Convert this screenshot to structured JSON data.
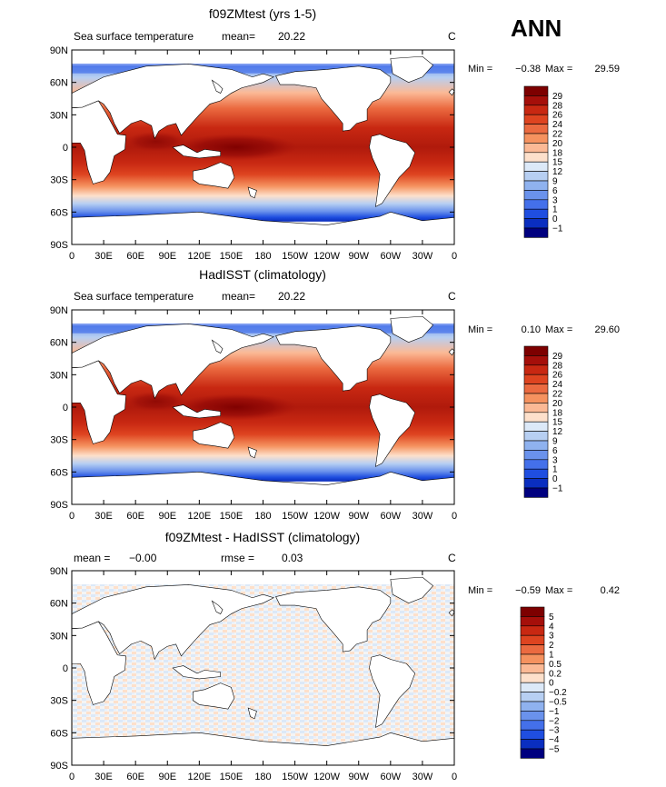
{
  "season_label": "ANN",
  "colors": {
    "contour_29": "#7d0000",
    "contour_neg": "#00007f"
  },
  "chart_data": [
    {
      "type": "heatmap",
      "title": "f09ZMtest (yrs 1-5)",
      "left_label": "Sea surface temperature",
      "mean_label": "mean=",
      "mean_value": "20.22",
      "units": "C",
      "min_label": "Min =",
      "min_value": "−0.38",
      "max_label": "Max =",
      "max_value": "29.59",
      "xticks": [
        "0",
        "30E",
        "60E",
        "90E",
        "120E",
        "150E",
        "180",
        "150W",
        "120W",
        "90W",
        "60W",
        "30W",
        "0"
      ],
      "yticks": [
        "90N",
        "60N",
        "30N",
        "0",
        "30S",
        "60S",
        "90S"
      ],
      "xlim": [
        0,
        360
      ],
      "ylim": [
        -90,
        90
      ],
      "levels": [
        "29",
        "28",
        "26",
        "24",
        "22",
        "20",
        "18",
        "15",
        "12",
        "9",
        "6",
        "3",
        "1",
        "0",
        "−1"
      ],
      "colors": [
        "#7d0000",
        "#a50f0a",
        "#c82812",
        "#de4420",
        "#eb6a40",
        "#f5925f",
        "#fbb995",
        "#fde0cb",
        "#dce9f8",
        "#b7cff2",
        "#8fb2ef",
        "#6a92ec",
        "#4470ea",
        "#1f4ee0",
        "#0a2ec0",
        "#00007f"
      ]
    },
    {
      "type": "heatmap",
      "title": "HadISST (climatology)",
      "left_label": "Sea surface temperature",
      "mean_label": "mean=",
      "mean_value": "20.22",
      "units": "C",
      "min_label": "Min =",
      "min_value": "0.10",
      "max_label": "Max =",
      "max_value": "29.60",
      "xticks": [
        "0",
        "30E",
        "60E",
        "90E",
        "120E",
        "150E",
        "180",
        "150W",
        "120W",
        "90W",
        "60W",
        "30W",
        "0"
      ],
      "yticks": [
        "90N",
        "60N",
        "30N",
        "0",
        "30S",
        "60S",
        "90S"
      ],
      "xlim": [
        0,
        360
      ],
      "ylim": [
        -90,
        90
      ],
      "levels": [
        "29",
        "28",
        "26",
        "24",
        "22",
        "20",
        "18",
        "15",
        "12",
        "9",
        "6",
        "3",
        "1",
        "0",
        "−1"
      ],
      "colors": [
        "#7d0000",
        "#a50f0a",
        "#c82812",
        "#de4420",
        "#eb6a40",
        "#f5925f",
        "#fbb995",
        "#fde0cb",
        "#dce9f8",
        "#b7cff2",
        "#8fb2ef",
        "#6a92ec",
        "#4470ea",
        "#1f4ee0",
        "#0a2ec0",
        "#00007f"
      ]
    },
    {
      "type": "heatmap",
      "title": "f09ZMtest - HadISST (climatology)",
      "left_label": "mean =",
      "mean_value": "−0.00",
      "rmse_label": "rmse =",
      "rmse_value": "0.03",
      "units": "C",
      "min_label": "Min =",
      "min_value": "−0.59",
      "max_label": "Max =",
      "max_value": "0.42",
      "xticks": [
        "0",
        "30E",
        "60E",
        "90E",
        "120E",
        "150E",
        "180",
        "150W",
        "120W",
        "90W",
        "60W",
        "30W",
        "0"
      ],
      "yticks": [
        "90N",
        "60N",
        "30N",
        "0",
        "30S",
        "60S",
        "90S"
      ],
      "xlim": [
        0,
        360
      ],
      "ylim": [
        -90,
        90
      ],
      "levels": [
        "5",
        "4",
        "3",
        "2",
        "1",
        "0.5",
        "0.2",
        "0",
        "−0.2",
        "−0.5",
        "−1",
        "−2",
        "−3",
        "−4",
        "−5"
      ],
      "colors": [
        "#7d0000",
        "#a50f0a",
        "#c82812",
        "#de4420",
        "#eb6a40",
        "#f5925f",
        "#fbb995",
        "#fde0cb",
        "#dce9f8",
        "#b7cff2",
        "#8fb2ef",
        "#6a92ec",
        "#4470ea",
        "#1f4ee0",
        "#0a2ec0",
        "#00007f"
      ]
    }
  ]
}
